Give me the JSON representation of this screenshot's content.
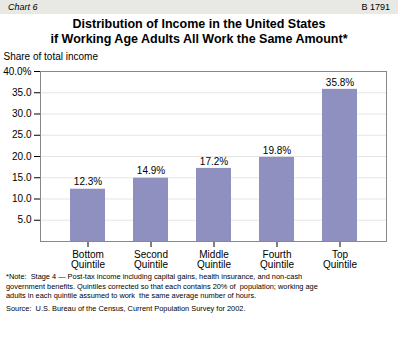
{
  "chart_data": {
    "type": "bar",
    "header_left": "Chart 6",
    "header_right": "B 1791",
    "title": "Distribution of Income in the United States",
    "subtitle": "if Working Age Adults All Work the Same Amount*",
    "ylabel": "Share of total income",
    "categories": [
      "Bottom\nQuintile",
      "Second\nQuintile",
      "Middle\nQuintile",
      "Fourth\nQuintile",
      "Top\nQuintile"
    ],
    "values": [
      12.3,
      14.9,
      17.2,
      19.8,
      35.8
    ],
    "value_labels": [
      "12.3%",
      "14.9%",
      "17.2%",
      "19.8%",
      "35.8%"
    ],
    "data_labels": true,
    "color": "#9090c0",
    "ylim": [
      0,
      40
    ],
    "yticks": [
      {
        "value": 5.0,
        "label": "5.0"
      },
      {
        "value": 10.0,
        "label": "10.0"
      },
      {
        "value": 15.0,
        "label": "15.0"
      },
      {
        "value": 20.0,
        "label": "20.0"
      },
      {
        "value": 25.0,
        "label": "25.0"
      },
      {
        "value": 30.0,
        "label": "30.0"
      },
      {
        "value": 35.0,
        "label": "35.0"
      },
      {
        "value": 40.0,
        "label": "40.0%"
      }
    ],
    "grid": true,
    "note": "*Note:  Stage 4 — Post-tax income including capital gains, health insurance, and non-cash\ngovernment benefits. Quintiles corrected so that each contains 20% of  population; working age\nadults in each quintile assumed to work  the same average number of hours.",
    "source": "Source:  U.S. Bureau of the Census, Current Population Survey for 2002."
  }
}
